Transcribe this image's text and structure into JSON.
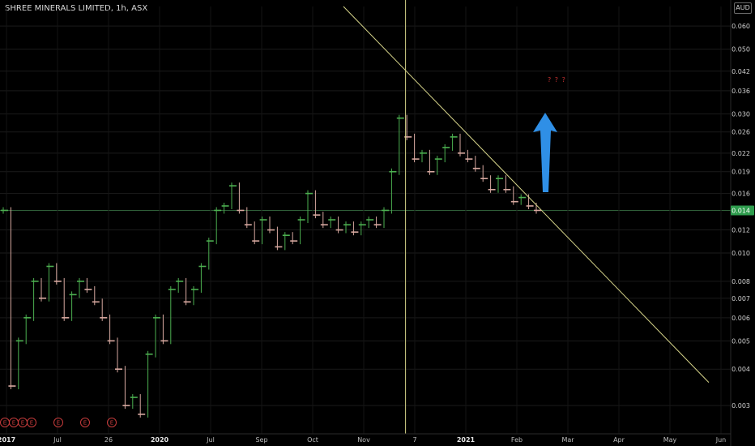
{
  "header": {
    "title": "SHREE MINERALS LIMITED, 1h, ASX",
    "currency": "AUD"
  },
  "annotation": {
    "note": "? ? ?"
  },
  "colors": {
    "background": "#000000",
    "up_candle": "#4caf50",
    "down_candle": "#d8a9a0",
    "trendline": "#d6d48a",
    "arrow": "#2f8fe6",
    "earnings_badge": "#c63b3b",
    "last_price_badge": "#2e9c4d"
  },
  "chart_data": {
    "type": "line",
    "scale": "log",
    "y_ticks": [
      "0.060",
      "0.050",
      "0.042",
      "0.036",
      "0.030",
      "0.026",
      "0.022",
      "0.019",
      "0.016",
      "0.014",
      "0.012",
      "0.010",
      "0.008",
      "0.007",
      "0.006",
      "0.005",
      "0.004",
      "0.003"
    ],
    "ylim": [
      0.0024,
      0.07
    ],
    "last_price": "0.014",
    "x_ticks": [
      {
        "label": "2017",
        "bold": true
      },
      {
        "label": "Jul",
        "bold": false
      },
      {
        "label": "26",
        "bold": false
      },
      {
        "label": "2020",
        "bold": true
      },
      {
        "label": "Jul",
        "bold": false
      },
      {
        "label": "Sep",
        "bold": false
      },
      {
        "label": "Oct",
        "bold": false
      },
      {
        "label": "Nov",
        "bold": false
      },
      {
        "label": "7",
        "bold": false
      },
      {
        "label": "2021",
        "bold": true
      },
      {
        "label": "Feb",
        "bold": false
      },
      {
        "label": "Mar",
        "bold": false
      },
      {
        "label": "Apr",
        "bold": false
      },
      {
        "label": "May",
        "bold": false
      },
      {
        "label": "Jun",
        "bold": false
      }
    ],
    "earnings_markers": [
      "E",
      "E",
      "E",
      "E",
      "E",
      "E",
      "E"
    ],
    "price_series": {
      "name": "",
      "values": [
        0.014,
        0.0035,
        0.005,
        0.006,
        0.008,
        0.007,
        0.009,
        0.008,
        0.006,
        0.0072,
        0.008,
        0.0075,
        0.0068,
        0.006,
        0.005,
        0.004,
        0.003,
        0.0032,
        0.0028,
        0.0045,
        0.006,
        0.005,
        0.0075,
        0.008,
        0.0068,
        0.0075,
        0.009,
        0.011,
        0.014,
        0.0145,
        0.017,
        0.014,
        0.0125,
        0.011,
        0.013,
        0.012,
        0.0105,
        0.0115,
        0.011,
        0.013,
        0.016,
        0.0135,
        0.0125,
        0.013,
        0.012,
        0.0125,
        0.0118,
        0.0125,
        0.013,
        0.0125,
        0.014,
        0.019,
        0.029,
        0.025,
        0.021,
        0.022,
        0.019,
        0.021,
        0.023,
        0.025,
        0.022,
        0.021,
        0.0195,
        0.018,
        0.0165,
        0.018,
        0.0165,
        0.015,
        0.0155,
        0.0145,
        0.014
      ]
    },
    "trendline": {
      "from": {
        "t": 0.47,
        "price": 0.07
      },
      "to": {
        "t": 0.97,
        "price": 0.0036
      }
    },
    "vertical_marker_t": 0.555
  }
}
